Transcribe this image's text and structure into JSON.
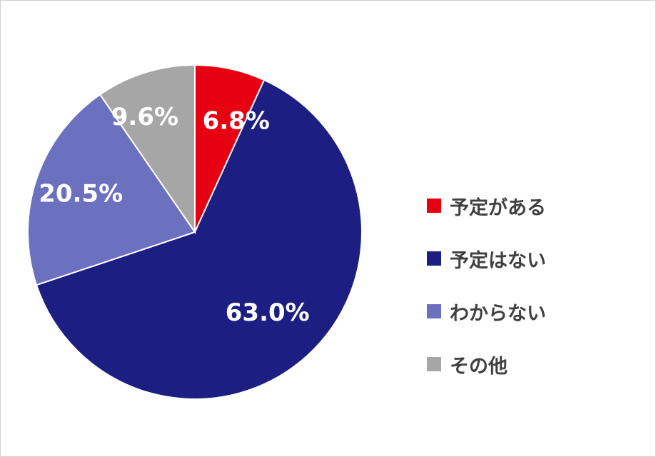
{
  "chart_data": {
    "type": "pie",
    "categories": [
      "予定がある",
      "予定はない",
      "わからない",
      "その他"
    ],
    "values": [
      6.8,
      63.0,
      20.5,
      9.6
    ],
    "labels": [
      "6.8%",
      "63.0%",
      "20.5%",
      "9.6%"
    ],
    "colors": [
      "#e60012",
      "#1c1e82",
      "#6b70bf",
      "#a6a6a6"
    ],
    "title": "",
    "legend_position": "right"
  }
}
